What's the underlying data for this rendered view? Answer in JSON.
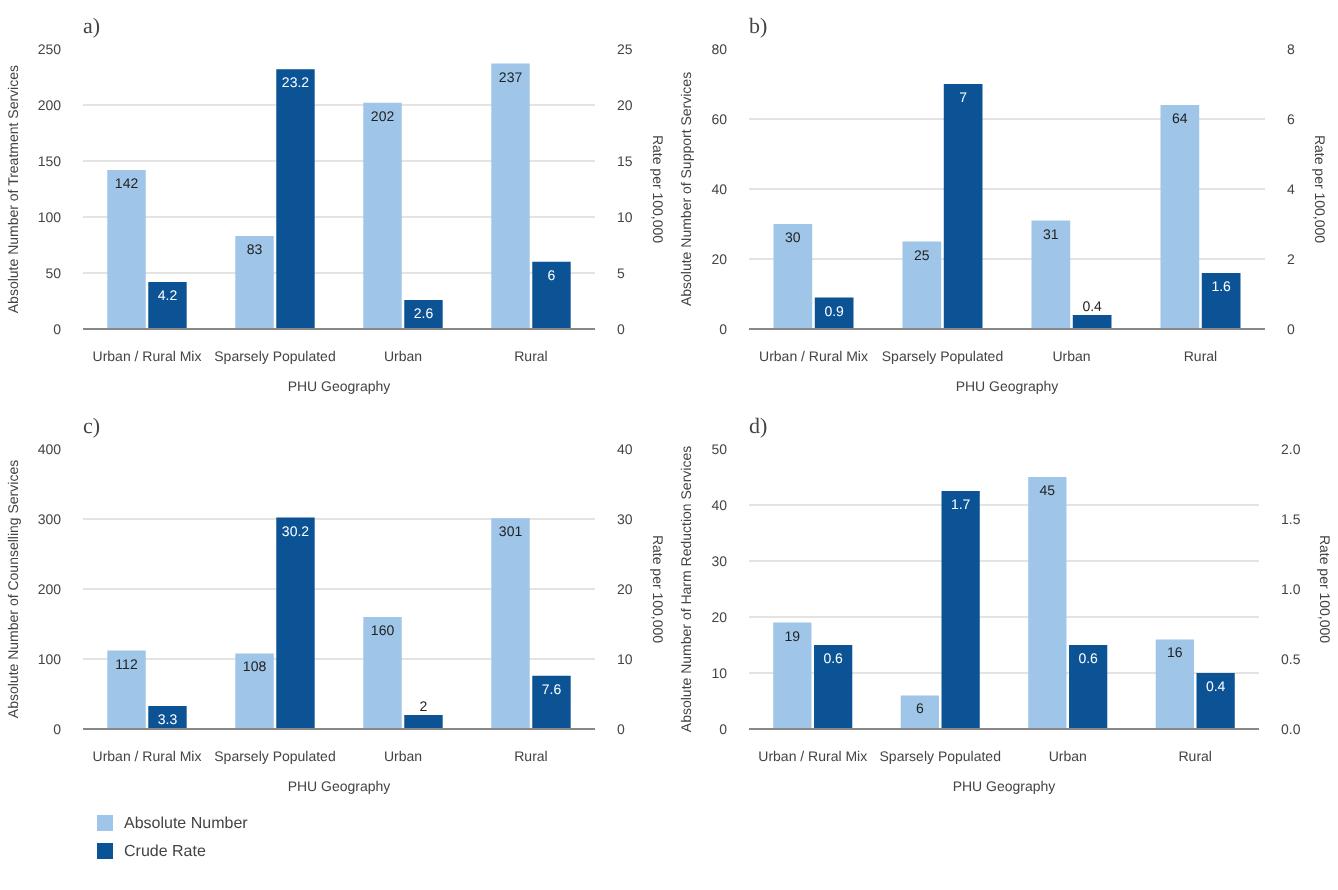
{
  "chart_data": [
    {
      "type": "bar",
      "title": "a)",
      "categories": [
        "Urban / Rural Mix",
        "Sparsely Populated",
        "Urban",
        "Rural"
      ],
      "xlabel": "PHU Geography",
      "ylabel": "Absolute Number of Treatment Services",
      "y2label": "Rate per 100,000",
      "ylim": [
        0,
        250
      ],
      "yticks": [
        0,
        50,
        100,
        150,
        200,
        250
      ],
      "y2lim": [
        0,
        25
      ],
      "y2ticks": [
        0,
        5,
        10,
        15,
        20,
        25
      ],
      "grid": "y",
      "data_labels": true,
      "legend": false,
      "series": [
        {
          "color": "#9fc5e8",
          "values": [
            142,
            83,
            202,
            237
          ]
        },
        {
          "color": "#0b5394",
          "axis": "y2",
          "values": [
            4.2,
            23.2,
            2.6,
            6
          ]
        }
      ]
    },
    {
      "type": "bar",
      "title": "b)",
      "categories": [
        "Urban / Rural Mix",
        "Sparsely Populated",
        "Urban",
        "Rural"
      ],
      "xlabel": "PHU Geography",
      "ylabel": "Absolute Number of Support Services",
      "y2label": "Rate per 100,000",
      "ylim": [
        0,
        80
      ],
      "yticks": [
        0,
        20,
        40,
        60,
        80
      ],
      "y2lim": [
        0,
        8
      ],
      "y2ticks": [
        0,
        2,
        4,
        6,
        8
      ],
      "grid": "y",
      "data_labels": true,
      "legend": false,
      "series": [
        {
          "color": "#9fc5e8",
          "values": [
            30,
            25,
            31,
            64
          ]
        },
        {
          "color": "#0b5394",
          "axis": "y2",
          "values": [
            0.9,
            7,
            0.4,
            1.6
          ]
        }
      ]
    },
    {
      "type": "bar",
      "title": "c)",
      "categories": [
        "Urban / Rural Mix",
        "Sparsely Populated",
        "Urban",
        "Rural"
      ],
      "xlabel": "PHU Geography",
      "ylabel": "Absolute Number of Counselling Services",
      "y2label": "Rate per 100,000",
      "ylim": [
        0,
        400
      ],
      "yticks": [
        0,
        100,
        200,
        300,
        400
      ],
      "y2lim": [
        0,
        40
      ],
      "y2ticks": [
        0,
        10,
        20,
        30,
        40
      ],
      "grid": "y",
      "data_labels": true,
      "legend": "bottom left",
      "series": [
        {
          "name": "Absolute Number",
          "color": "#9fc5e8",
          "values": [
            112,
            108,
            160,
            301
          ]
        },
        {
          "name": "Crude Rate",
          "color": "#0b5394",
          "axis": "y2",
          "values": [
            3.3,
            30.2,
            2,
            7.6
          ]
        }
      ]
    },
    {
      "type": "bar",
      "title": "d)",
      "categories": [
        "Urban / Rural Mix",
        "Sparsely Populated",
        "Urban",
        "Rural"
      ],
      "xlabel": "PHU Geography",
      "ylabel": "Absolute Number of Harm Reduction Services",
      "y2label": "Rate per 100,000",
      "ylim": [
        0,
        50
      ],
      "yticks": [
        0,
        10,
        20,
        30,
        40,
        50
      ],
      "y2lim": [
        0,
        2
      ],
      "y2ticks": [
        {
          "value": 0,
          "label": "0.0"
        },
        {
          "value": 0.5,
          "label": "0.5"
        },
        {
          "value": 1,
          "label": "1.0"
        },
        {
          "value": 1.5,
          "label": "1.5"
        },
        {
          "value": 2,
          "label": "2.0"
        }
      ],
      "grid": "y",
      "data_labels": true,
      "legend": false,
      "series": [
        {
          "color": "#9fc5e8",
          "values": [
            19,
            6,
            45,
            16
          ]
        },
        {
          "color": "#0b5394",
          "axis": "y2",
          "values": [
            0.6,
            1.7,
            0.6,
            0.4
          ]
        }
      ]
    }
  ]
}
